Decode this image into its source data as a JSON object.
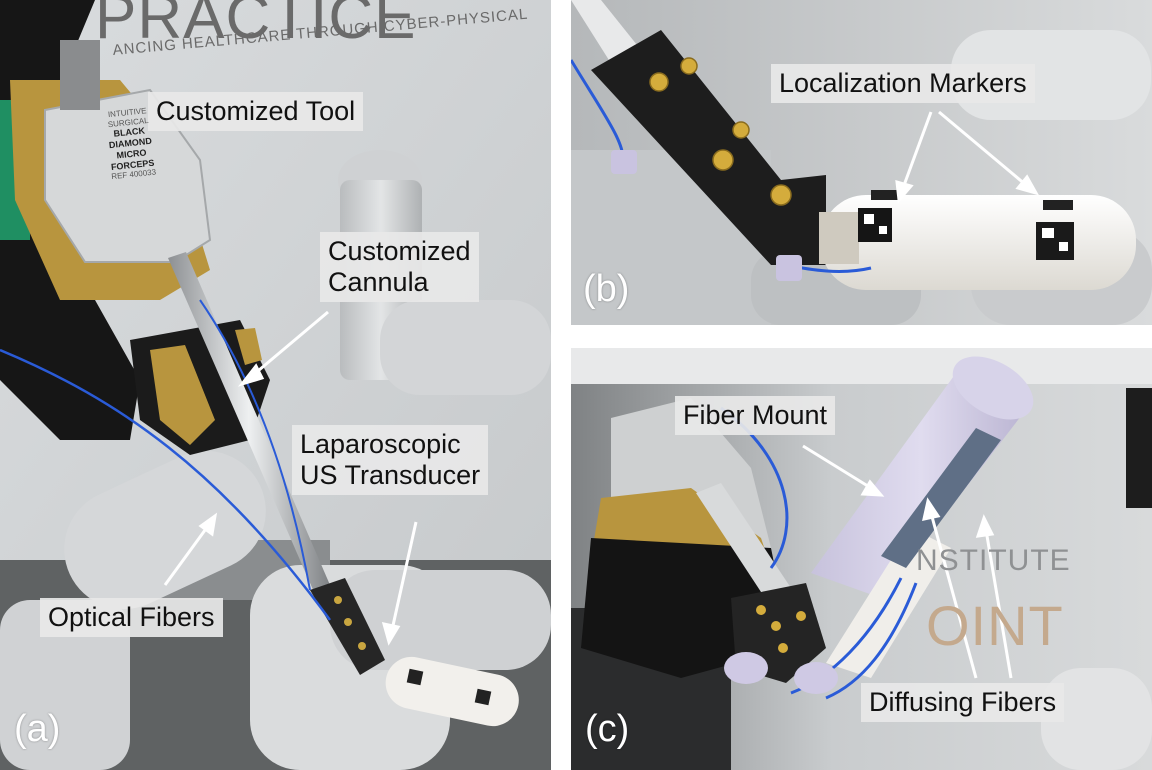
{
  "panel_a": {
    "letter": "(a)",
    "wall_text_large": "PRACTICE",
    "wall_text_small": "ANCING HEALTHCARE THROUGH CYBER-PHYSICAL",
    "labels": {
      "customized_tool": "Customized Tool",
      "customized_cannula": [
        "Customized",
        "Cannula"
      ],
      "us_transducer": [
        "Laparoscopic",
        "US Transducer"
      ],
      "optical_fibers": "Optical Fibers"
    },
    "tool_text": [
      "INTUITIVE",
      "SURGICAL",
      "BLACK",
      "DIAMOND",
      "MICRO",
      "FORCEPS",
      "REF 400033"
    ]
  },
  "panel_b": {
    "letter": "(b)",
    "labels": {
      "localization_markers": "Localization Markers"
    }
  },
  "panel_c": {
    "letter": "(c)",
    "wall_text": [
      "NSTITUTE",
      "OINT"
    ],
    "labels": {
      "fiber_mount": "Fiber Mount",
      "diffusing_fibers": "Diffusing Fibers"
    }
  }
}
